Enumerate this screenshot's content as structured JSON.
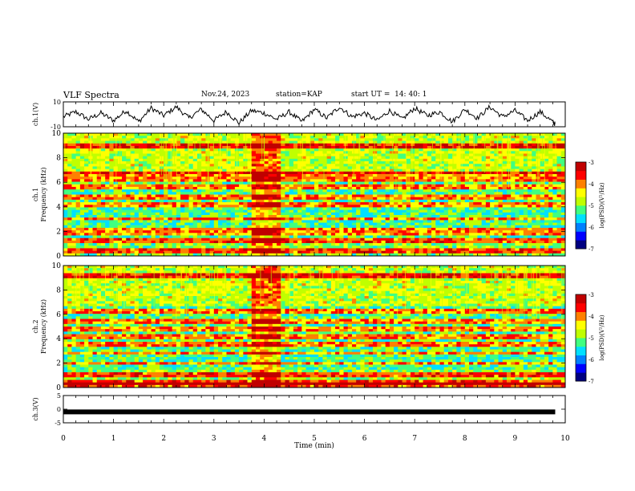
{
  "header": {
    "title": "VLF Spectra",
    "date": "Nov.24, 2023",
    "station": "station=KAP",
    "start": "start UT =  14: 40: 1"
  },
  "colors": {
    "spec_scale": [
      "#000080",
      "#0000ff",
      "#0080ff",
      "#00e0ff",
      "#40ff80",
      "#c0ff00",
      "#ffff00",
      "#ff8000",
      "#ff0000",
      "#c00000"
    ],
    "trace": "#000000"
  },
  "chart_data": [
    {
      "type": "line",
      "panel": "ch1-waveform",
      "ylabel": "ch.1(V)",
      "ylim": [
        -10,
        10
      ],
      "yticks": [
        "10",
        "-10"
      ],
      "xlim": [
        0,
        10
      ],
      "series": [
        {
          "values_description_free": true,
          "x": [
            0,
            0.25,
            0.5,
            0.75,
            1.0,
            1.25,
            1.5,
            1.75,
            2.0,
            2.25,
            2.5,
            2.75,
            3.0,
            3.25,
            3.5,
            3.75,
            4.0,
            4.25,
            4.5,
            4.75,
            5.0,
            5.25,
            5.5,
            5.75,
            6.0,
            6.25,
            6.5,
            6.75,
            7.0,
            7.25,
            7.5,
            7.75,
            8.0,
            8.25,
            8.5,
            8.75,
            9.0,
            9.25,
            9.5,
            9.75,
            9.8
          ],
          "y": [
            -2,
            2,
            -4,
            1,
            -5,
            3,
            -6,
            5,
            -1,
            6,
            -3,
            4,
            -5,
            2,
            -7,
            3,
            1,
            -4,
            2,
            -6,
            4,
            -3,
            6,
            -2,
            1,
            -5,
            3,
            -4,
            5,
            -1,
            2,
            -6,
            4,
            -3,
            6,
            -2,
            3,
            -5,
            2,
            -6,
            -8
          ]
        }
      ]
    },
    {
      "type": "heatmap",
      "panel": "ch1-spectrogram",
      "ylabel": "ch.1\nFrequency (kHz)",
      "ylim": [
        0,
        10
      ],
      "yticks": [
        "0",
        "2",
        "4",
        "6",
        "8",
        "10"
      ],
      "xlim": [
        0,
        10
      ],
      "colorbar": {
        "label": "log(PSD)(V²/Hz)",
        "range": [
          -7,
          -3
        ],
        "ticks": [
          "-3",
          "-4",
          "-5",
          "-6",
          "-7"
        ]
      },
      "bands_khz": [
        0.3,
        0.5,
        1.2,
        1.8,
        2.2,
        3.0,
        4.1,
        4.8,
        5.6,
        6.3,
        6.6,
        9.0
      ],
      "burst_minutes": [
        3.75,
        4.3
      ]
    },
    {
      "type": "heatmap",
      "panel": "ch2-spectrogram",
      "ylabel": "ch.2\nFrequency (kHz)",
      "ylim": [
        0,
        10
      ],
      "yticks": [
        "0",
        "2",
        "4",
        "6",
        "8",
        "10"
      ],
      "xlim": [
        0,
        10
      ],
      "colorbar": {
        "label": "log(PSD)(V²/Hz)",
        "range": [
          -7,
          -3
        ],
        "ticks": [
          "-3",
          "-4",
          "-5",
          "-6",
          "-7"
        ]
      },
      "bands_khz": [
        0.2,
        0.4,
        1.0,
        2.0,
        2.8,
        3.6,
        4.2,
        4.8,
        5.4,
        6.2,
        9.2
      ],
      "burst_minutes": [
        3.75,
        4.3
      ]
    },
    {
      "type": "line",
      "panel": "ch3-waveform",
      "ylabel": "ch.3(V)",
      "ylim": [
        -5,
        5
      ],
      "yticks": [
        "5",
        "0",
        "-5"
      ],
      "xlim": [
        0,
        10
      ],
      "xlabel": "Time (min)",
      "xticks": [
        "0",
        "1",
        "2",
        "3",
        "4",
        "5",
        "6",
        "7",
        "8",
        "9",
        "10"
      ],
      "series": [
        {
          "x": [
            0,
            9.8
          ],
          "y": [
            -1,
            -1
          ]
        }
      ]
    }
  ]
}
